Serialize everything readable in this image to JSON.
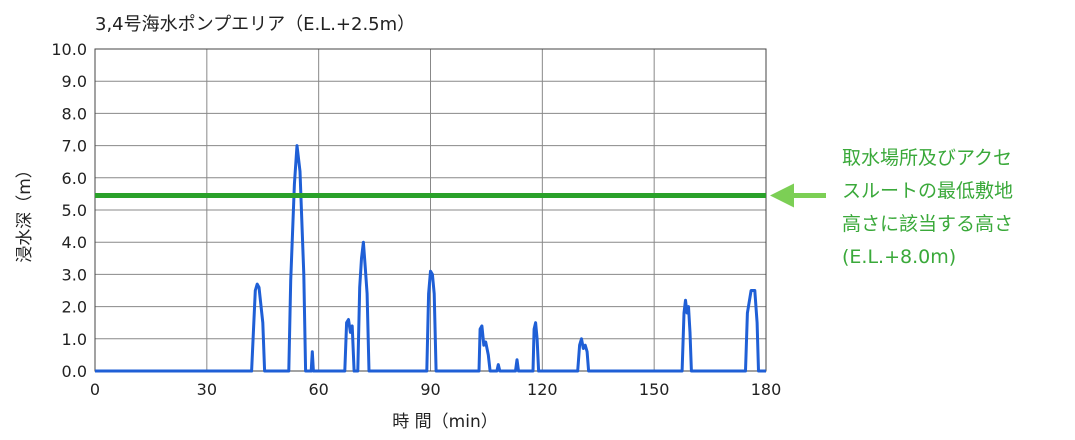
{
  "chart_data": {
    "type": "line",
    "title": "3,4号海水ポンプエリア（E.L.+2.5m）",
    "xlabel": "時 間（min）",
    "ylabel": "浸水深（m）",
    "xlim": [
      0,
      180
    ],
    "ylim": [
      0,
      10
    ],
    "x_ticks": [
      0,
      30,
      60,
      90,
      120,
      150,
      180
    ],
    "y_ticks": [
      "0.0",
      "1.0",
      "2.0",
      "3.0",
      "4.0",
      "5.0",
      "6.0",
      "7.0",
      "8.0",
      "9.0",
      "10.0"
    ],
    "grid": true,
    "colors": {
      "series": "#1f5fd6",
      "threshold": "#2aa12a",
      "annotation": "#3aa93a",
      "grid": "#888888"
    },
    "series": [
      {
        "points": [
          [
            0,
            0
          ],
          [
            42,
            0
          ],
          [
            43,
            2.5
          ],
          [
            43.5,
            2.7
          ],
          [
            44,
            2.6
          ],
          [
            45,
            1.5
          ],
          [
            45.5,
            0
          ],
          [
            52,
            0
          ],
          [
            52.5,
            2.8
          ],
          [
            53.5,
            5.8
          ],
          [
            54.2,
            7.0
          ],
          [
            55,
            6.2
          ],
          [
            56,
            3.0
          ],
          [
            56.5,
            0
          ],
          [
            58,
            0
          ],
          [
            58.3,
            0.6
          ],
          [
            58.6,
            0
          ],
          [
            67,
            0
          ],
          [
            67.5,
            1.5
          ],
          [
            68,
            1.6
          ],
          [
            68.5,
            1.2
          ],
          [
            69,
            1.4
          ],
          [
            69.5,
            0
          ],
          [
            70.5,
            0
          ],
          [
            71,
            2.6
          ],
          [
            71.5,
            3.5
          ],
          [
            72,
            4.0
          ],
          [
            72.5,
            3.2
          ],
          [
            73,
            2.4
          ],
          [
            73.5,
            0
          ],
          [
            89,
            0
          ],
          [
            89.5,
            2.4
          ],
          [
            90,
            3.1
          ],
          [
            90.5,
            3.0
          ],
          [
            91,
            2.4
          ],
          [
            91.5,
            0
          ],
          [
            103,
            0
          ],
          [
            103.3,
            1.3
          ],
          [
            103.8,
            1.4
          ],
          [
            104.3,
            0.8
          ],
          [
            104.8,
            0.9
          ],
          [
            105.5,
            0.5
          ],
          [
            106,
            0
          ],
          [
            107.8,
            0
          ],
          [
            108.2,
            0.2
          ],
          [
            108.6,
            0
          ],
          [
            112.8,
            0
          ],
          [
            113.2,
            0.35
          ],
          [
            113.6,
            0
          ],
          [
            117.5,
            0
          ],
          [
            117.8,
            1.3
          ],
          [
            118.2,
            1.5
          ],
          [
            118.6,
            1.0
          ],
          [
            119,
            0
          ],
          [
            129.5,
            0
          ],
          [
            130,
            0.8
          ],
          [
            130.5,
            1.0
          ],
          [
            131,
            0.7
          ],
          [
            131.5,
            0.8
          ],
          [
            132,
            0.6
          ],
          [
            132.4,
            0
          ],
          [
            157.5,
            0
          ],
          [
            158,
            1.8
          ],
          [
            158.4,
            2.2
          ],
          [
            158.8,
            1.8
          ],
          [
            159.2,
            2.0
          ],
          [
            159.6,
            1.2
          ],
          [
            160,
            0
          ],
          [
            174.5,
            0
          ],
          [
            175,
            1.8
          ],
          [
            176,
            2.5
          ],
          [
            177,
            2.5
          ],
          [
            177.6,
            1.5
          ],
          [
            178,
            0
          ],
          [
            180,
            0
          ]
        ]
      }
    ],
    "threshold": {
      "y": 5.45
    },
    "annotation_lines": [
      "取水場所及びアクセ",
      "スルートの最低敷地",
      "高さに該当する高さ",
      "(E.L.+8.0m)"
    ]
  }
}
